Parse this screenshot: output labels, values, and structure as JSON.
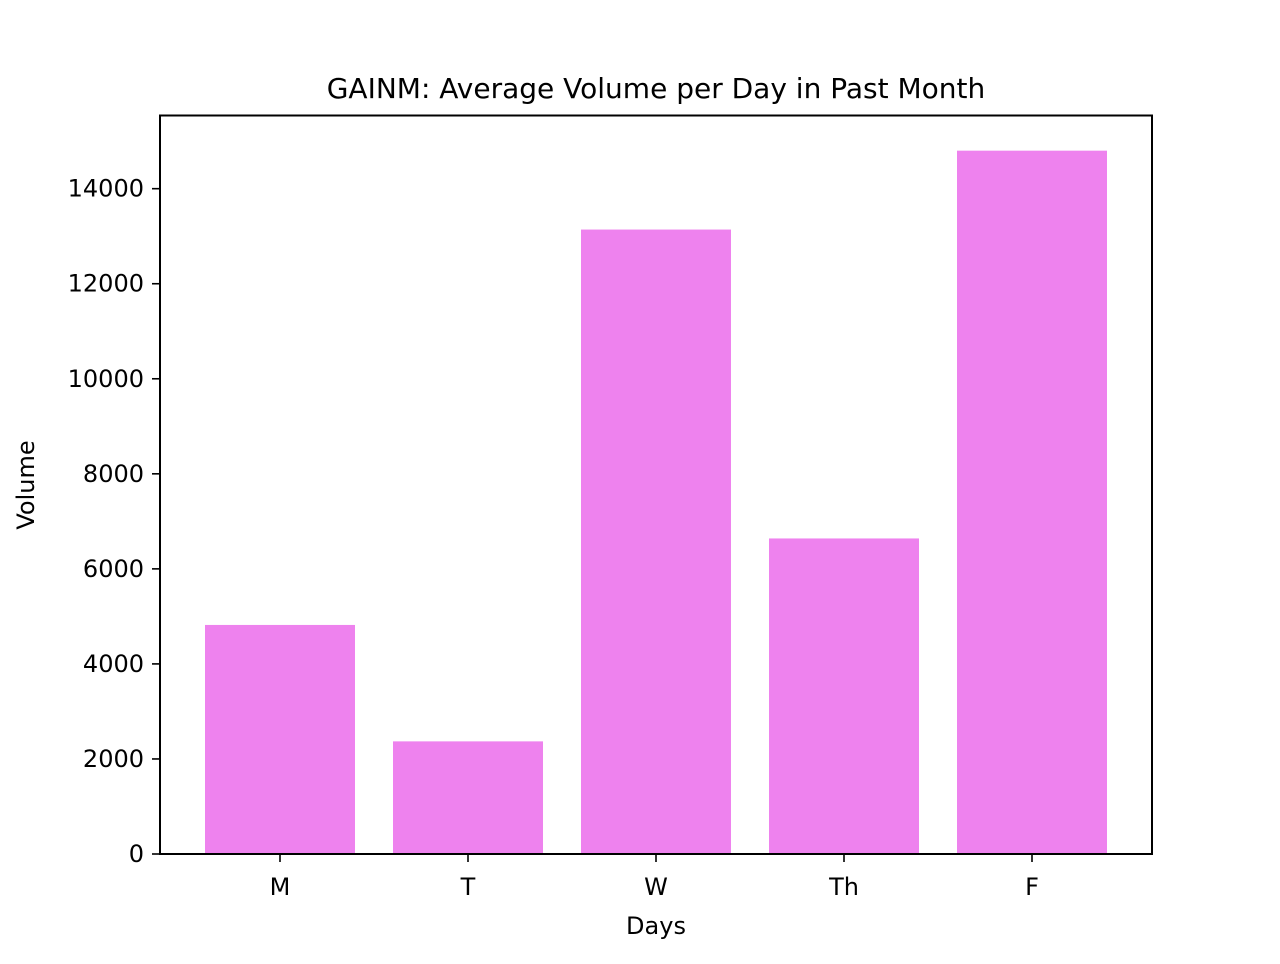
{
  "chart_data": {
    "type": "bar",
    "title": "GAINM: Average Volume per Day in Past Month",
    "xlabel": "Days",
    "ylabel": "Volume",
    "categories": [
      "M",
      "T",
      "W",
      "Th",
      "F"
    ],
    "values": [
      4820,
      2370,
      13140,
      6640,
      14800
    ],
    "ylim": [
      0,
      15540
    ],
    "yticks": [
      0,
      2000,
      4000,
      6000,
      8000,
      10000,
      12000,
      14000
    ],
    "grid": false,
    "bar_color": "#ee82ee"
  }
}
